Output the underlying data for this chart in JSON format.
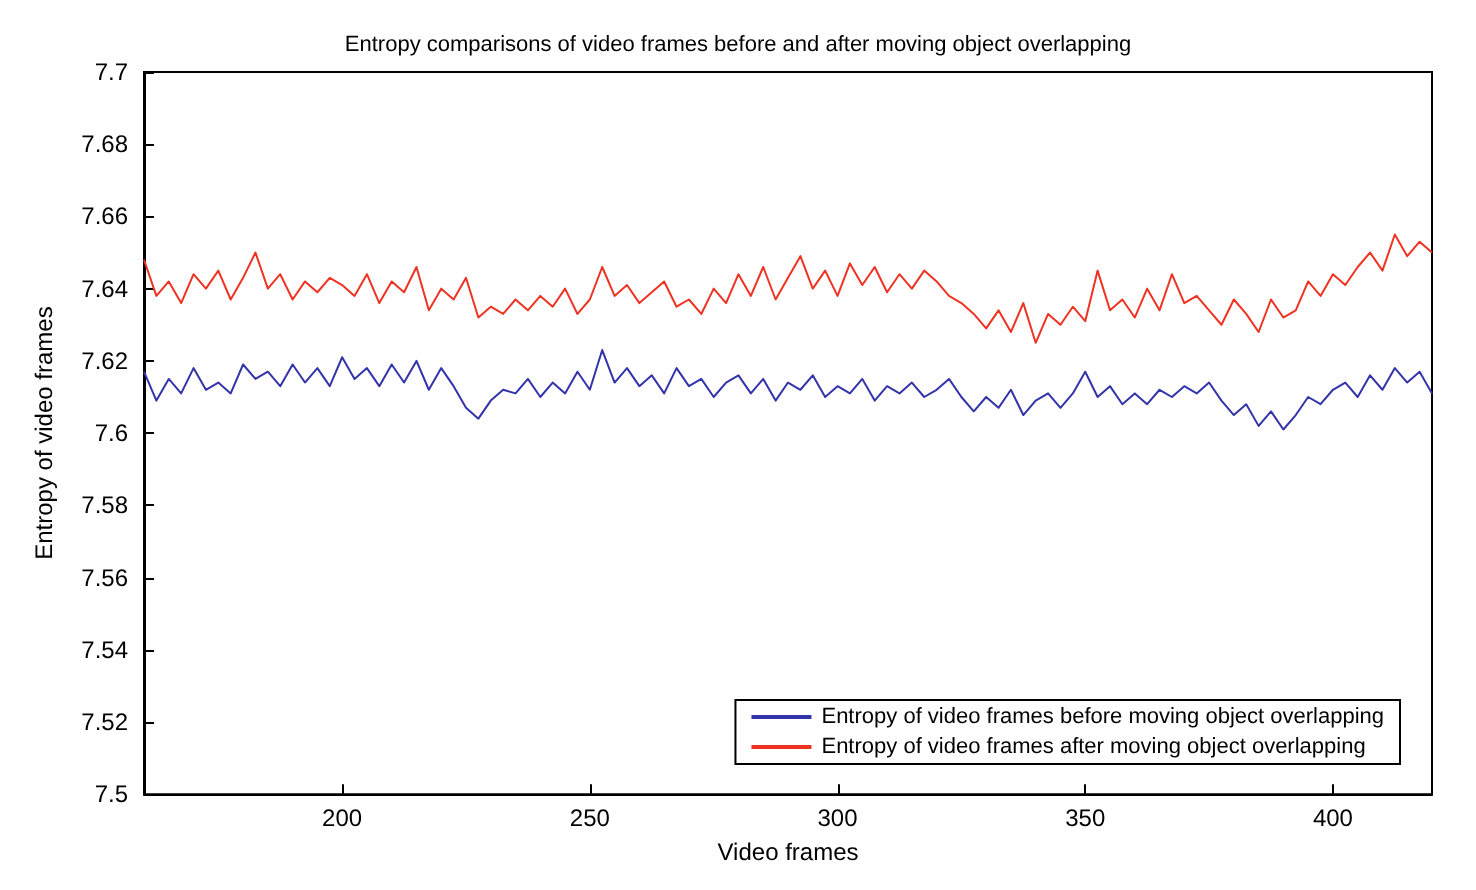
{
  "chart_data": {
    "type": "line",
    "title": "Entropy comparisons of video frames before and after moving object overlapping",
    "xlabel": "Video frames",
    "ylabel": "Entropy of video frames",
    "xlim": [
      160,
      420
    ],
    "xticks": [
      200,
      250,
      300,
      350,
      400
    ],
    "ylim": [
      7.5,
      7.7
    ],
    "yticks": [
      7.5,
      7.52,
      7.54,
      7.56,
      7.58,
      7.6,
      7.62,
      7.64,
      7.66,
      7.68,
      7.7
    ],
    "grid": false,
    "legend": "bottom right",
    "marker": "none",
    "line_style": "solid",
    "x": [
      160,
      162.5,
      165,
      167.5,
      170,
      172.5,
      175,
      177.5,
      180,
      182.5,
      185,
      187.5,
      190,
      192.5,
      195,
      197.5,
      200,
      202.5,
      205,
      207.5,
      210,
      212.5,
      215,
      217.5,
      220,
      222.5,
      225,
      227.5,
      230,
      232.5,
      235,
      237.5,
      240,
      242.5,
      245,
      247.5,
      250,
      252.5,
      255,
      257.5,
      260,
      262.5,
      265,
      267.5,
      270,
      272.5,
      275,
      277.5,
      280,
      282.5,
      285,
      287.5,
      290,
      292.5,
      295,
      297.5,
      300,
      302.5,
      305,
      307.5,
      310,
      312.5,
      315,
      317.5,
      320,
      322.5,
      325,
      327.5,
      330,
      332.5,
      335,
      337.5,
      340,
      342.5,
      345,
      347.5,
      350,
      352.5,
      355,
      357.5,
      360,
      362.5,
      365,
      367.5,
      370,
      372.5,
      375,
      377.5,
      380,
      382.5,
      385,
      387.5,
      390,
      392.5,
      395,
      397.5,
      400,
      402.5,
      405,
      407.5,
      410,
      412.5,
      415,
      417.5,
      420
    ],
    "series": [
      {
        "name": "Entropy of video frames before moving object overlapping",
        "color": "#3333aa",
        "values": [
          7.617,
          7.609,
          7.615,
          7.611,
          7.618,
          7.612,
          7.614,
          7.611,
          7.619,
          7.615,
          7.617,
          7.613,
          7.619,
          7.614,
          7.618,
          7.613,
          7.621,
          7.615,
          7.618,
          7.613,
          7.619,
          7.614,
          7.62,
          7.612,
          7.618,
          7.613,
          7.607,
          7.604,
          7.609,
          7.612,
          7.611,
          7.615,
          7.61,
          7.614,
          7.611,
          7.617,
          7.612,
          7.623,
          7.614,
          7.618,
          7.613,
          7.616,
          7.611,
          7.618,
          7.613,
          7.615,
          7.61,
          7.614,
          7.616,
          7.611,
          7.615,
          7.609,
          7.614,
          7.612,
          7.616,
          7.61,
          7.613,
          7.611,
          7.615,
          7.609,
          7.613,
          7.611,
          7.614,
          7.61,
          7.612,
          7.615,
          7.61,
          7.606,
          7.61,
          7.607,
          7.612,
          7.605,
          7.609,
          7.611,
          7.607,
          7.611,
          7.617,
          7.61,
          7.613,
          7.608,
          7.611,
          7.608,
          7.612,
          7.61,
          7.613,
          7.611,
          7.614,
          7.609,
          7.605,
          7.608,
          7.602,
          7.606,
          7.601,
          7.605,
          7.61,
          7.608,
          7.612,
          7.614,
          7.61,
          7.616,
          7.612,
          7.618,
          7.614,
          7.617,
          7.611
        ]
      },
      {
        "name": "Entropy of video frames after moving object overlapping",
        "color": "#ee3322",
        "values": [
          7.648,
          7.638,
          7.642,
          7.636,
          7.644,
          7.64,
          7.645,
          7.637,
          7.643,
          7.65,
          7.64,
          7.644,
          7.637,
          7.642,
          7.639,
          7.643,
          7.641,
          7.638,
          7.644,
          7.636,
          7.642,
          7.639,
          7.646,
          7.634,
          7.64,
          7.637,
          7.643,
          7.632,
          7.635,
          7.633,
          7.637,
          7.634,
          7.638,
          7.635,
          7.64,
          7.633,
          7.637,
          7.646,
          7.638,
          7.641,
          7.636,
          7.639,
          7.642,
          7.635,
          7.637,
          7.633,
          7.64,
          7.636,
          7.644,
          7.638,
          7.646,
          7.637,
          7.643,
          7.649,
          7.64,
          7.645,
          7.638,
          7.647,
          7.641,
          7.646,
          7.639,
          7.644,
          7.64,
          7.645,
          7.642,
          7.638,
          7.636,
          7.633,
          7.629,
          7.634,
          7.628,
          7.636,
          7.625,
          7.633,
          7.63,
          7.635,
          7.631,
          7.645,
          7.634,
          7.637,
          7.632,
          7.64,
          7.634,
          7.644,
          7.636,
          7.638,
          7.634,
          7.63,
          7.637,
          7.633,
          7.628,
          7.637,
          7.632,
          7.634,
          7.642,
          7.638,
          7.644,
          7.641,
          7.646,
          7.65,
          7.645,
          7.655,
          7.649,
          7.653,
          7.65
        ]
      }
    ]
  }
}
